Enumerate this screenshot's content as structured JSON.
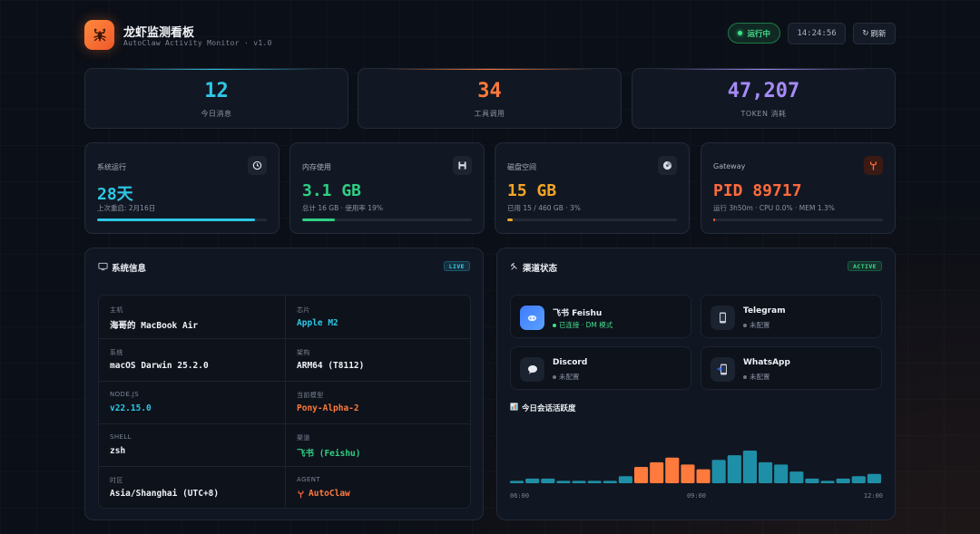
{
  "header": {
    "title": "龙虾监测看板",
    "subtitle": "AutoClaw Activity Monitor · v1.0",
    "status": "运行中",
    "time": "14:24:56",
    "refresh_icon": "↻",
    "refresh_label": "刷新"
  },
  "stats": [
    {
      "value": "12",
      "label": "今日消息",
      "color": "#2ec7e6"
    },
    {
      "value": "34",
      "label": "工具调用",
      "color": "#ff7a3c"
    },
    {
      "value": "47,207",
      "label": "TOKEN 消耗",
      "color": "#a78bfa"
    }
  ],
  "metrics": [
    {
      "label": "系统运行",
      "value": "28天",
      "sub": "上次重启: 2月16日",
      "progress": 0.93,
      "color": "#2ec7e6",
      "icon": "clock-icon"
    },
    {
      "label": "内存使用",
      "value": "3.1 GB",
      "sub": "总计 16 GB · 使用率 19%",
      "progress": 0.19,
      "color": "#2fcf84",
      "icon": "floppy-icon"
    },
    {
      "label": "磁盘空间",
      "value": "15 GB",
      "sub": "已用 15 / 460 GB · 3%",
      "progress": 0.03,
      "color": "#f5a524",
      "icon": "disk-icon"
    },
    {
      "label": "Gateway",
      "value": "PID 89717",
      "sub": "运行 3h50m · CPU 0.0% · MEM 1.3%",
      "progress": 0.013,
      "color": "#ff6a3d",
      "icon": "gateway-icon"
    }
  ],
  "system": {
    "title": "系统信息",
    "badge": "LIVE",
    "items": [
      {
        "key": "主机",
        "value": "海哥的 MacBook Air",
        "color": "#f0f2f6"
      },
      {
        "key": "芯片",
        "value": "Apple M2",
        "color": "#2ec7e6"
      },
      {
        "key": "系统",
        "value": "macOS Darwin 25.2.0",
        "color": "#f0f2f6"
      },
      {
        "key": "架构",
        "value": "ARM64 (T8112)",
        "color": "#f0f2f6"
      },
      {
        "key": "NODE.JS",
        "value": "v22.15.0",
        "color": "#2ec7e6"
      },
      {
        "key": "当前模型",
        "value": "Pony-Alpha-2",
        "color": "#ff7a3c"
      },
      {
        "key": "SHELL",
        "value": "zsh",
        "color": "#f0f2f6"
      },
      {
        "key": "渠道",
        "value": "飞书 (Feishu)",
        "color": "#2fcf84"
      },
      {
        "key": "时区",
        "value": "Asia/Shanghai (UTC+8)",
        "color": "#f0f2f6"
      },
      {
        "key": "AGENT",
        "value": "AutoClaw",
        "color": "#ff7a3c"
      }
    ]
  },
  "channels": {
    "title": "渠道状态",
    "badge": "ACTIVE",
    "items": [
      {
        "name": "飞书 Feishu",
        "state": "已连接 · DM 模式",
        "connected": true,
        "icon": "feishu-icon"
      },
      {
        "name": "Telegram",
        "state": "未配置",
        "connected": false,
        "icon": "phone-icon"
      },
      {
        "name": "Discord",
        "state": "未配置",
        "connected": false,
        "icon": "chat-bubble-icon"
      },
      {
        "name": "WhatsApp",
        "state": "未配置",
        "connected": false,
        "icon": "phone-icon"
      }
    ]
  },
  "chart": {
    "title": "今日会话活跃度"
  },
  "chart_data": {
    "type": "bar",
    "title": "今日会话活跃度",
    "x_ticks": [
      "06:00",
      "09:00",
      "12:00"
    ],
    "values": [
      1,
      2,
      2,
      1,
      1,
      1,
      1,
      3,
      7,
      9,
      11,
      8,
      6,
      10,
      12,
      14,
      9,
      8,
      5,
      2,
      1,
      2,
      3,
      4
    ],
    "highlight_range": [
      8,
      12
    ],
    "colors": {
      "normal": "#1e8fa6",
      "highlight": "#ff7a3c"
    },
    "grid": false
  }
}
